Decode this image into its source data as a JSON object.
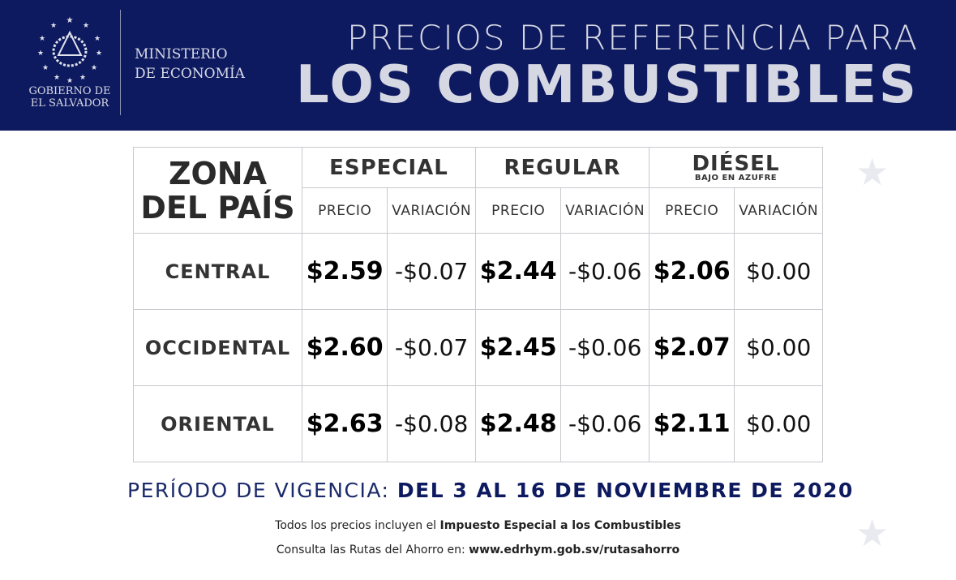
{
  "header": {
    "gov_line1": "GOBIERNO DE",
    "gov_line2": "EL SALVADOR",
    "ministry_line1": "MINISTERIO",
    "ministry_line2": "DE ECONOMÍA",
    "title_line1": "PRECIOS DE REFERENCIA PARA",
    "title_line2": "LOS COMBUSTIBLES"
  },
  "table": {
    "zone_header_1": "ZONA",
    "zone_header_2": "DEL PAÍS",
    "groups": [
      {
        "label": "ESPECIAL",
        "sub": ""
      },
      {
        "label": "REGULAR",
        "sub": ""
      },
      {
        "label": "DIÉSEL",
        "sub": "BAJO EN AZUFRE"
      }
    ],
    "price_label": "PRECIO",
    "variation_label": "VARIACIÓN",
    "rows": [
      {
        "zone": "CENTRAL",
        "values": [
          "$2.59",
          "-$0.07",
          "$2.44",
          "-$0.06",
          "$2.06",
          "$0.00"
        ]
      },
      {
        "zone": "OCCIDENTAL",
        "values": [
          "$2.60",
          "-$0.07",
          "$2.45",
          "-$0.06",
          "$2.07",
          "$0.00"
        ]
      },
      {
        "zone": "ORIENTAL",
        "values": [
          "$2.63",
          "-$0.08",
          "$2.48",
          "-$0.06",
          "$2.11",
          "$0.00"
        ]
      }
    ]
  },
  "footer": {
    "period_label": "PERÍODO DE VIGENCIA:",
    "period_value": "DEL 3 AL 16 DE NOVIEMBRE DE 2020",
    "note1_a": "Todos los precios incluyen el ",
    "note1_b": "Impuesto Especial a los Combustibles",
    "note2_a": "Consulta las Rutas del Ahorro en: ",
    "note2_b": "www.edrhym.gob.sv/rutasahorro"
  },
  "colors": {
    "navy": "#0e1a5f"
  }
}
